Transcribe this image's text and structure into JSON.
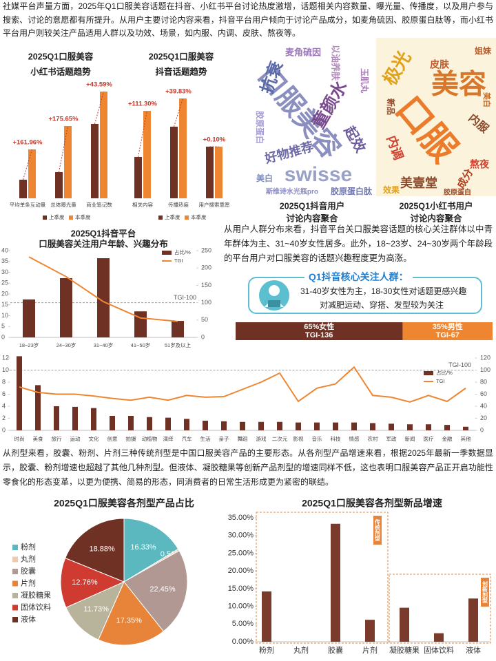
{
  "paragraphs": [
    "社媒平台声量方面，2025年Q1口服美容话题在抖音、小红书平台讨论热度激增，话题相关内容数量、曝光量、传播度，以及用户参与搜索、讨论的意愿都有所提升。从用户主要讨论内容来看，抖音平台用户倾向于讨论产品成分，如麦角硫因、胶原蛋白肽等，而小红书平台用户则较关注产品适用人群以及功效、场景，如内服、内调、皮肤、熬夜等。",
    "从用户人群分布来看，抖音平台关口服美容话题的核心关注群体以中青年群体为主、31~40岁女性居多。此外，18~23岁、24~30岁两个年龄段的平台用户对口服美容的话题兴趣程度更为高涨。",
    "从剂型来看，胶囊、粉剂、片剂三种传统剂型是中国口服美容产品的主要形态。从各剂型产品增速来看，根据2025年最新一季数据显示，胶囊、粉剂增速也超越了其他几种剂型。但液体、凝胶糖果等创新产品剂型的增速同样不低，这也表明口服美容产品正开启功能性零食化的形态变革，以更为便携、简易的形态，同消费者的日常生活形成更为紧密的联结。"
  ],
  "card": {
    "title": "Q1抖音核心关注人群：",
    "lines": [
      "31-40岁女性为主，18-30女性对话题更感兴趣",
      "对减肥运动、穿搭、发型较为关注"
    ]
  },
  "chart_data": [
    {
      "type": "bar",
      "title": "2025Q1口服美容",
      "subtitle": "小红书话题趋势",
      "categories": [
        "平均单条互动量",
        "总体曝光量",
        "商业笔记数"
      ],
      "series": [
        {
          "name": "上季度",
          "color": "#6e3124",
          "values": [
            27,
            38,
            108
          ]
        },
        {
          "name": "本季度",
          "color": "#ee8631",
          "values": [
            71,
            105,
            155
          ]
        }
      ],
      "annotations": [
        "+161.96%",
        "+175.65%",
        "+43.59%"
      ]
    },
    {
      "type": "bar",
      "title": "2025Q1口服美容",
      "subtitle": "抖音话题趋势",
      "categories": [
        "相关内容",
        "传播热度",
        "用户搜索意愿"
      ],
      "series": [
        {
          "name": "上季度",
          "color": "#6e3124",
          "values": [
            60,
            104,
            75
          ]
        },
        {
          "name": "本季度",
          "color": "#ee8631",
          "values": [
            127,
            145,
            75
          ]
        }
      ],
      "annotations": [
        "+111.30%",
        "+39.83%",
        "+0.10%"
      ]
    },
    {
      "type": "wordcloud",
      "title": "2025Q1抖音用户",
      "subtitle": "讨论内容聚合",
      "words": [
        "口服美容",
        "swisse",
        "童颜水",
        "抗衰",
        "好物推荐",
        "起效",
        "胶原蛋白肽",
        "以油养肤",
        "麦角硫因",
        "斯维诗水光瓶pro",
        "胶原蛋白",
        "玉肌丸",
        "美白"
      ]
    },
    {
      "type": "wordcloud",
      "title": "2025Q1小红书用户",
      "subtitle": "讨论内容聚合",
      "words": [
        "口服",
        "美容",
        "极光",
        "内服",
        "内调",
        "美壹堂",
        "皮肤",
        "熬夜",
        "成分",
        "姐妹",
        "新品",
        "效果",
        "美白",
        "胶原蛋白"
      ]
    },
    {
      "type": "bar_line",
      "title": "2025Q1抖音平台",
      "subtitle": "口服美容关注用户年龄、兴趣分布",
      "categories": [
        "18~23岁",
        "24~30岁",
        "31~40岁",
        "41~50岁",
        "51岁及以上"
      ],
      "series": [
        {
          "name": "占比/%",
          "color": "#6e3124",
          "values": [
            17.5,
            27.3,
            36.5,
            12,
            7.6
          ]
        },
        {
          "name": "TGI",
          "color": "#ee8631",
          "axis": "y2",
          "values": [
            232,
            175,
            103,
            56,
            46
          ]
        }
      ],
      "ylim": [
        0,
        40
      ],
      "yticks": [
        0,
        5,
        10,
        15,
        20,
        25,
        30,
        35,
        40
      ],
      "y2lim": [
        0,
        250
      ],
      "y2ticks": [
        0,
        50,
        100,
        150,
        200,
        250
      ],
      "reference": {
        "value": 100,
        "label": "TGI-100"
      }
    },
    {
      "type": "stacked_bar",
      "values": [
        65,
        35
      ],
      "value_labels": [
        "65%女性",
        "35%男性"
      ],
      "colors": [
        "#6e3124",
        "#ee8631"
      ],
      "sublabels": [
        "TGI-136",
        "TGI-67"
      ]
    },
    {
      "type": "bar_line",
      "categories": [
        "时尚",
        "美食",
        "旅行",
        "运动",
        "文化",
        "创意",
        "拍摄",
        "动植物",
        "演绎",
        "汽车",
        "生活",
        "亲子",
        "舞蹈",
        "游戏",
        "二次元",
        "影视",
        "音乐",
        "科技",
        "情感",
        "农村",
        "军政",
        "新闻",
        "医疗",
        "金融",
        "其他"
      ],
      "series": [
        {
          "name": "占比/%",
          "color": "#6e3124",
          "values": [
            12.3,
            7.5,
            4.0,
            3.9,
            3.7,
            2.4,
            2.4,
            2.2,
            2.1,
            1.9,
            1.6,
            1.5,
            1.4,
            1.4,
            1.4,
            1.3,
            1.3,
            1.3,
            1.3,
            1.2,
            1.1,
            1.0,
            1.0,
            0.9,
            0.6
          ]
        },
        {
          "name": "TGI",
          "color": "#ee8631",
          "axis": "y2",
          "values": [
            72,
            63,
            60,
            60,
            57,
            53,
            50,
            55,
            50,
            58,
            55,
            56,
            68,
            80,
            95,
            48,
            70,
            77,
            105,
            58,
            55,
            47,
            58,
            48,
            70
          ]
        }
      ],
      "ylim": [
        0,
        12
      ],
      "yticks": [
        0,
        2,
        4,
        6,
        8,
        10,
        12
      ],
      "y2lim": [
        0,
        120
      ],
      "y2ticks": [
        0,
        20,
        40,
        60,
        80,
        100,
        120
      ],
      "reference": {
        "value": 100,
        "label": "TGI-100"
      }
    },
    {
      "type": "pie",
      "title": "2025Q1口服美容各剂型产品占比",
      "categories": [
        "粉剂",
        "丸剂",
        "胶囊",
        "片剂",
        "凝胶糖果",
        "固体饮料",
        "液体"
      ],
      "values": [
        16.33,
        0.51,
        22.45,
        17.35,
        11.73,
        12.76,
        18.88
      ],
      "value_labels": [
        "16.33%",
        "0.51%",
        "22.45%",
        "17.35%",
        "11.73%",
        "12.76%",
        "18.88%"
      ],
      "colors": [
        "#5bb8be",
        "#f0c8b0",
        "#b19892",
        "#e8843a",
        "#b8b49c",
        "#cf3a31",
        "#6e3124"
      ]
    },
    {
      "type": "bar",
      "title": "2025Q1口服美容各剂型新品增速",
      "categories": [
        "粉剂",
        "丸剂",
        "胶囊",
        "片剂",
        "凝胶糖果",
        "固体饮料",
        "液体"
      ],
      "values": [
        14.2,
        0,
        33.3,
        6.2,
        9.6,
        2.4,
        12.2
      ],
      "color": "#7a3a2c",
      "ylim": [
        0,
        35
      ],
      "yticks": [
        {
          "value": 0,
          "label": "0.00%"
        },
        {
          "value": 5,
          "label": "5.00%"
        },
        {
          "value": 10,
          "label": "10.00%"
        },
        {
          "value": 15,
          "label": "15.00%"
        },
        {
          "value": 20,
          "label": "20.00%"
        },
        {
          "value": 25,
          "label": "25.00%"
        },
        {
          "value": 30,
          "label": "30.00%"
        },
        {
          "value": 35,
          "label": "35.00%"
        }
      ],
      "group_labels": [
        "传统剂型",
        "创新剂型"
      ]
    }
  ]
}
